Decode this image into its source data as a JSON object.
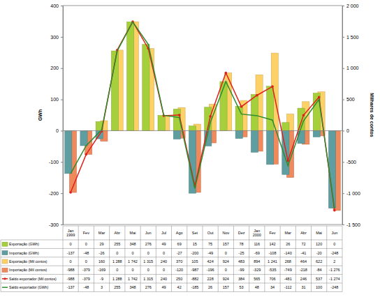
{
  "chart_data": {
    "type": "bar",
    "categories": [
      "Jan 1999",
      "Fev",
      "Mar",
      "Abr",
      "Mai",
      "Jun",
      "Jul",
      "Ago",
      "Set",
      "Out",
      "Nov",
      "Dez",
      "Jan 2000",
      "Fev",
      "Mar",
      "Abr",
      "Mai",
      "Jun"
    ],
    "ylabel": "GWh",
    "y2label": "Milhares de contos",
    "ylim": [
      -300,
      400
    ],
    "yticks": [
      -300,
      -200,
      -100,
      0,
      100,
      200,
      300,
      400
    ],
    "y2lim": [
      -1500,
      2000
    ],
    "y2ticks": [
      {
        "value": -1500,
        "label": "-1 500"
      },
      {
        "value": -1000,
        "label": "-1 000"
      },
      -500,
      0,
      500,
      {
        "value": 1000,
        "label": "1 000"
      },
      {
        "value": 1500,
        "label": "1 500"
      },
      {
        "value": 2000,
        "label": "2 000"
      }
    ],
    "grid": false,
    "series": [
      {
        "name": "Exportação (GWh)",
        "type": "bar",
        "color": "#a6cf3c",
        "values": [
          0,
          0,
          29,
          255,
          348,
          276,
          49,
          69,
          15,
          75,
          157,
          78,
          116,
          142,
          26,
          72,
          120,
          0
        ]
      },
      {
        "name": "Importação (GWh)",
        "type": "bar",
        "color": "#5f9ea0",
        "values": [
          -137,
          -48,
          -26,
          0,
          0,
          0,
          0,
          -27,
          -200,
          -49,
          0,
          -25,
          -69,
          -108,
          -140,
          -41,
          -20,
          -248
        ]
      },
      {
        "name": "Exportação (Mil contos)",
        "type": "bar",
        "color": "#fdd068",
        "axis": "y2",
        "values": [
          0,
          0,
          160,
          1288,
          1742,
          1315,
          240,
          370,
          105,
          424,
          924,
          483,
          894,
          1241,
          268,
          464,
          622,
          2
        ],
        "value_labels": [
          "0",
          "0",
          "160",
          "1 288",
          "1 742",
          "1 315",
          "240",
          "370",
          "105",
          "424",
          "924",
          "483",
          "894",
          "1 241",
          "268",
          "464",
          "622",
          "2"
        ]
      },
      {
        "name": "Importação (Mil contos)",
        "type": "bar",
        "color": "#f08a5d",
        "axis": "y2",
        "values": [
          -988,
          -379,
          -169,
          0,
          0,
          0,
          0,
          -120,
          -987,
          -196,
          0,
          -99,
          -329,
          -535,
          -749,
          -218,
          -84,
          -1276
        ],
        "value_labels": [
          "-988",
          "-379",
          "-169",
          "0",
          "0",
          "0",
          "0",
          "-120",
          "-987",
          "-196",
          "0",
          "-99",
          "-329",
          "-535",
          "-749",
          "-218",
          "-84",
          "-1 276"
        ]
      },
      {
        "name": "Saldo exportador (Mil contos)",
        "type": "line",
        "color": "#e0201b",
        "axis": "y2",
        "marker": "circle",
        "values": [
          -988,
          -379,
          -9,
          1288,
          1742,
          1315,
          240,
          250,
          -882,
          228,
          924,
          384,
          565,
          706,
          -481,
          246,
          537,
          -1274
        ],
        "value_labels": [
          "-988",
          "-379",
          "-9",
          "1 288",
          "1 742",
          "1 315",
          "240",
          "250",
          "-882",
          "228",
          "924",
          "384",
          "565",
          "706",
          "-481",
          "246",
          "537",
          "-1 274"
        ]
      },
      {
        "name": "Saldo exportador (GWh)",
        "type": "line",
        "color": "#2e8b2e",
        "values": [
          -137,
          -48,
          3,
          255,
          348,
          276,
          49,
          42,
          -185,
          26,
          157,
          53,
          48,
          34,
          -112,
          31,
          100,
          -248
        ]
      }
    ]
  }
}
